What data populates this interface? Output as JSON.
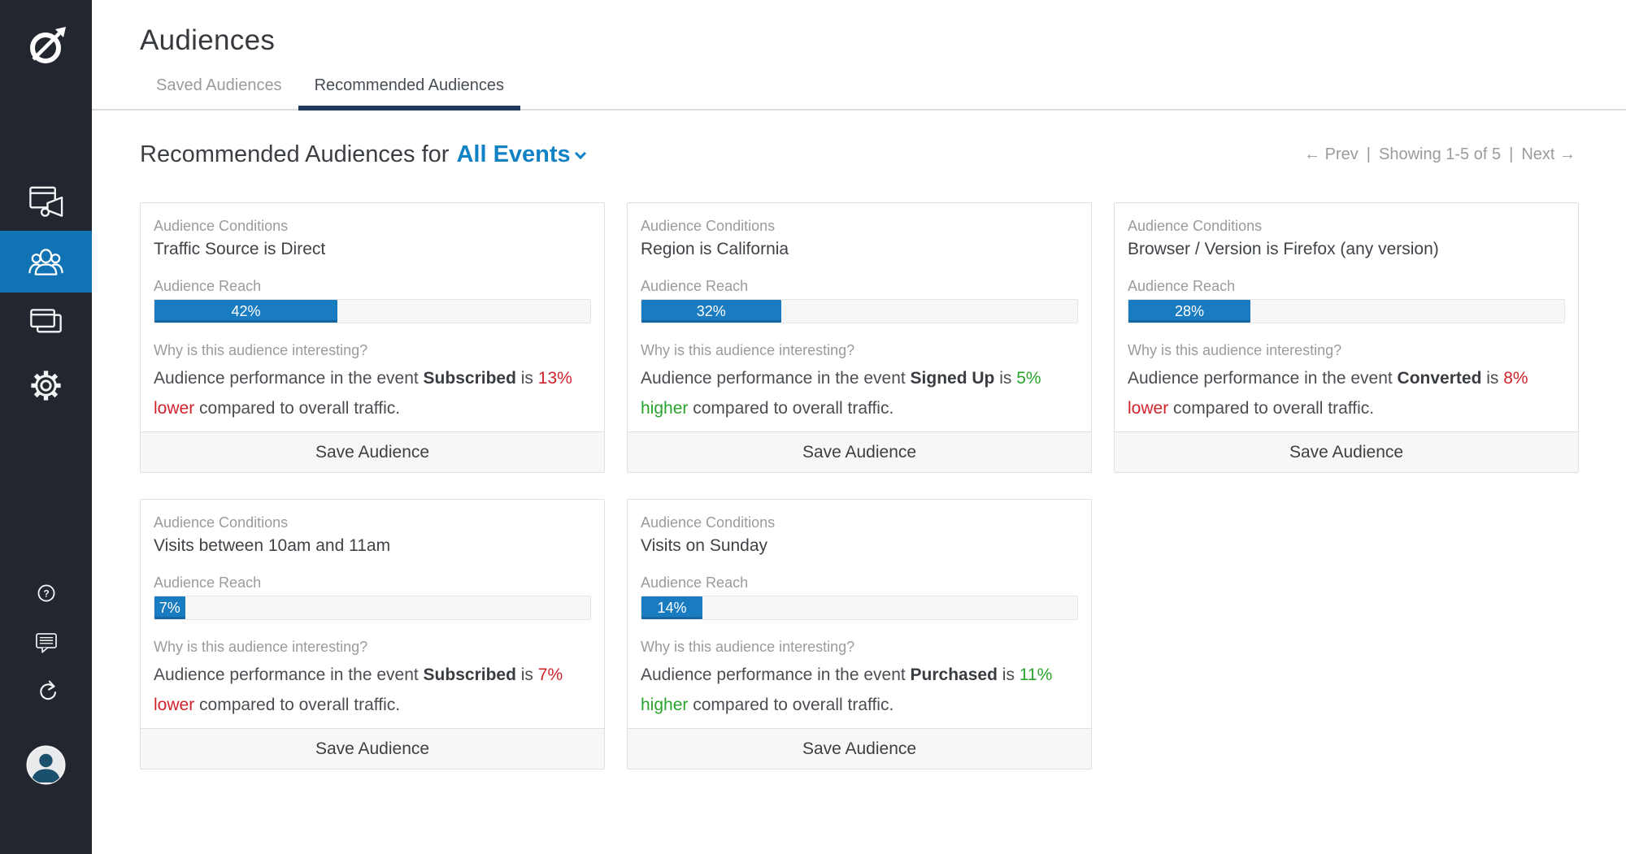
{
  "colors": {
    "sidebar_bg": "#22262f",
    "active_blue": "#1173b4",
    "bar_blue": "#1a7cc0",
    "accent": "#1183c5",
    "navy": "#21395a",
    "red": "#d0232b",
    "green": "#2aa32d",
    "gray": "#9b9b9b"
  },
  "sidebar": {
    "icons": [
      "logo-compass",
      "announcement-window",
      "audience-people",
      "stacked-windows",
      "gear",
      "help-question",
      "feedback-chat",
      "share-redo",
      "user-avatar"
    ]
  },
  "header": {
    "title": "Audiences",
    "tabs": [
      {
        "label": "Saved Audiences",
        "active": false
      },
      {
        "label": "Recommended Audiences",
        "active": true
      }
    ]
  },
  "toolbar": {
    "heading_prefix": "Recommended Audiences for",
    "event_filter": "All Events",
    "pagination": {
      "prev": "← Prev",
      "separator": "|",
      "showing": "Showing 1-5 of 5",
      "next": "Next →"
    }
  },
  "card_labels": {
    "conditions": "Audience Conditions",
    "reach": "Audience Reach",
    "why": "Why is this audience interesting?",
    "save": "Save Audience"
  },
  "cards": [
    {
      "condition": "Traffic Source is Direct",
      "reach_pct": 42,
      "why_parts": [
        {
          "text": "Audience performance in the event "
        },
        {
          "text": "Subscribed",
          "bold": true
        },
        {
          "text": " is "
        },
        {
          "text": "13% lower",
          "tone": "negative"
        },
        {
          "text": " compared to overall traffic."
        }
      ]
    },
    {
      "condition": "Region is California",
      "reach_pct": 32,
      "why_parts": [
        {
          "text": "Audience performance in the event "
        },
        {
          "text": "Signed Up",
          "bold": true
        },
        {
          "text": " is "
        },
        {
          "text": "5% higher",
          "tone": "positive"
        },
        {
          "text": " compared to overall traffic."
        }
      ]
    },
    {
      "condition": "Browser / Version is Firefox (any version)",
      "reach_pct": 28,
      "why_parts": [
        {
          "text": "Audience performance in the event "
        },
        {
          "text": "Converted",
          "bold": true
        },
        {
          "text": " is "
        },
        {
          "text": "8% lower",
          "tone": "negative"
        },
        {
          "text": " compared to overall traffic."
        }
      ]
    },
    {
      "condition": "Visits between 10am and 11am",
      "reach_pct": 7,
      "why_parts": [
        {
          "text": "Audience performance in the event "
        },
        {
          "text": "Subscribed",
          "bold": true
        },
        {
          "text": " is "
        },
        {
          "text": "7% lower",
          "tone": "negative"
        },
        {
          "text": " compared to overall traffic."
        }
      ]
    },
    {
      "condition": "Visits on Sunday",
      "reach_pct": 14,
      "why_parts": [
        {
          "text": "Audience performance in the event "
        },
        {
          "text": "Purchased",
          "bold": true
        },
        {
          "text": " is "
        },
        {
          "text": "11% higher",
          "tone": "positive"
        },
        {
          "text": " compared to overall traffic."
        }
      ]
    }
  ]
}
